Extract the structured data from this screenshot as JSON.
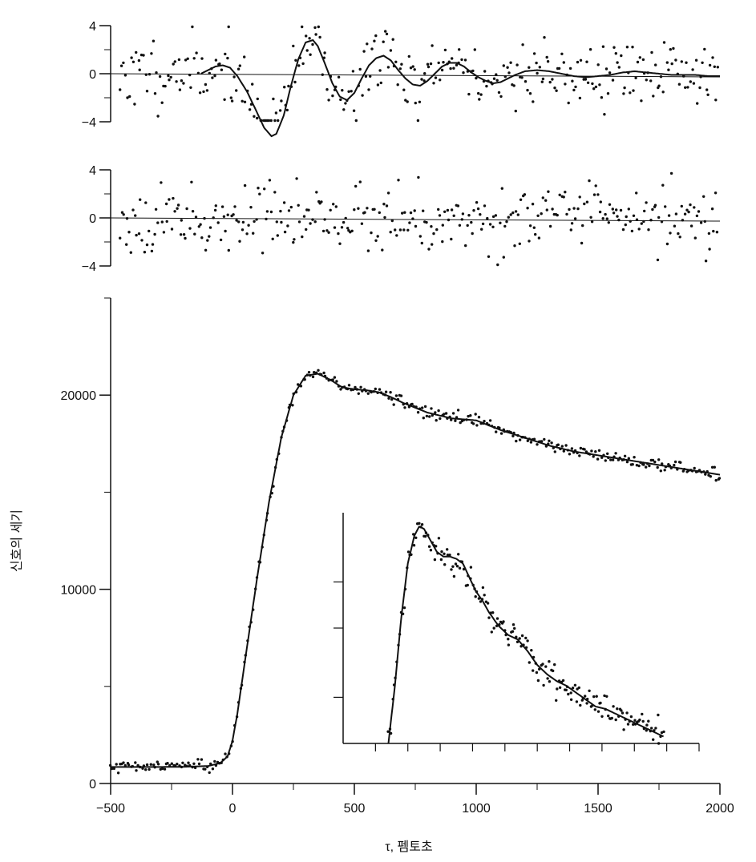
{
  "chart_data": [
    {
      "id": "residuals_top",
      "type": "scatter",
      "description_role": "residuals-with-oscillation",
      "xlim": [
        -500,
        2000
      ],
      "ylim": [
        -4,
        4
      ],
      "y_ticks": [
        4,
        0,
        -4
      ],
      "y_tick_labels": [
        "4",
        "0",
        "−4"
      ],
      "fit_curve": {
        "x": [
          -130,
          -100,
          -70,
          -40,
          -10,
          20,
          60,
          100,
          130,
          160,
          180,
          210,
          240,
          270,
          300,
          330,
          350,
          380,
          410,
          440,
          470,
          500,
          530,
          560,
          590,
          620,
          650,
          680,
          710,
          740,
          770,
          800,
          830,
          860,
          890,
          920,
          950,
          980,
          1010,
          1040,
          1070,
          1100,
          1130,
          1160,
          1200,
          1250,
          1300,
          1350,
          1400,
          1450,
          1500,
          1550,
          1600,
          1650,
          1700,
          1750,
          1800,
          1850,
          1900,
          1950,
          2000
        ],
        "y": [
          0,
          0.3,
          0.6,
          0.7,
          0.5,
          -0.2,
          -1.5,
          -3.2,
          -4.5,
          -5.2,
          -5.0,
          -3.5,
          -1.0,
          1.2,
          2.6,
          2.8,
          2.3,
          0.8,
          -0.8,
          -1.9,
          -2.2,
          -1.6,
          -0.4,
          0.7,
          1.3,
          1.5,
          1.1,
          0.3,
          -0.4,
          -0.9,
          -1.0,
          -0.6,
          0.0,
          0.6,
          0.9,
          0.9,
          0.6,
          0.1,
          -0.3,
          -0.6,
          -0.8,
          -0.7,
          -0.4,
          -0.1,
          0.2,
          0.3,
          0.2,
          0.0,
          -0.2,
          -0.3,
          -0.2,
          -0.1,
          0.1,
          0.2,
          0.1,
          0.0,
          -0.1,
          -0.1,
          -0.1,
          -0.2,
          -0.2
        ]
      },
      "points_seed": 11,
      "point_count": 330,
      "noise_sd": 1.4,
      "noise_follows_fit": true
    },
    {
      "id": "residuals_bottom",
      "type": "scatter",
      "description_role": "residuals",
      "xlim": [
        -500,
        2000
      ],
      "ylim": [
        -4,
        4
      ],
      "y_ticks": [
        4,
        0,
        -4
      ],
      "y_tick_labels": [
        "4",
        "0",
        "−4"
      ],
      "points_seed": 23,
      "point_count": 330,
      "noise_sd": 1.3,
      "noise_follows_fit": false
    },
    {
      "id": "main",
      "type": "scatter",
      "xlim": [
        -500,
        2000
      ],
      "ylim": [
        0,
        25000
      ],
      "x_ticks": [
        -500,
        0,
        500,
        1000,
        1500,
        2000
      ],
      "x_tick_labels": [
        "−500",
        "0",
        "500",
        "1000",
        "1500",
        "2000"
      ],
      "x_minor_ticks": [
        -250,
        250,
        750,
        1250,
        1750
      ],
      "y_ticks": [
        0,
        10000,
        20000
      ],
      "y_tick_labels": [
        "0",
        "10000",
        "20000"
      ],
      "y_minor_ticks": [
        5000,
        15000,
        25000
      ],
      "xlabel": "τ, 펨토초",
      "ylabel": "신호의 세기",
      "fit_curve": {
        "x": [
          -500,
          -400,
          -300,
          -200,
          -100,
          -50,
          -20,
          0,
          20,
          50,
          100,
          150,
          200,
          250,
          300,
          350,
          400,
          450,
          500,
          550,
          600,
          650,
          700,
          800,
          900,
          1000,
          1100,
          1200,
          1300,
          1400,
          1500,
          1600,
          1700,
          1800,
          1900,
          2000
        ],
        "y": [
          850,
          850,
          850,
          860,
          900,
          1050,
          1400,
          2200,
          3600,
          6200,
          10500,
          14500,
          17800,
          20000,
          21000,
          21100,
          20800,
          20400,
          20300,
          20250,
          20150,
          19900,
          19600,
          19100,
          18800,
          18700,
          18200,
          17800,
          17400,
          17100,
          16900,
          16700,
          16500,
          16300,
          16100,
          15900
        ]
      },
      "points_seed": 37,
      "point_count": 330,
      "noise_sd": 150
    },
    {
      "id": "inset",
      "type": "scatter",
      "description_role": "inset-detail-of-decay",
      "xlim": [
        -200,
        2000
      ],
      "ylim": [
        0,
        1
      ],
      "x_ticks": [
        0,
        200,
        400,
        600,
        800,
        1000,
        1200,
        1400,
        1600,
        1800,
        2000
      ],
      "y_ticks": [
        0.2,
        0.5,
        0.7
      ],
      "fit_curve": {
        "x": [
          80,
          120,
          160,
          200,
          240,
          270,
          300,
          340,
          380,
          420,
          460,
          500,
          540,
          580,
          620,
          660,
          700,
          760,
          820,
          880,
          940,
          1000,
          1060,
          1120,
          1180,
          1240,
          1300,
          1360,
          1420,
          1480,
          1540,
          1600,
          1660,
          1720,
          1780
        ],
        "y": [
          0.0,
          0.25,
          0.55,
          0.78,
          0.9,
          0.94,
          0.93,
          0.88,
          0.83,
          0.81,
          0.81,
          0.8,
          0.78,
          0.72,
          0.66,
          0.62,
          0.57,
          0.51,
          0.47,
          0.45,
          0.4,
          0.34,
          0.3,
          0.27,
          0.25,
          0.22,
          0.19,
          0.16,
          0.15,
          0.13,
          0.11,
          0.09,
          0.07,
          0.05,
          0.03
        ]
      },
      "points_seed": 53,
      "point_count": 190,
      "noise_sd": 0.03
    }
  ]
}
